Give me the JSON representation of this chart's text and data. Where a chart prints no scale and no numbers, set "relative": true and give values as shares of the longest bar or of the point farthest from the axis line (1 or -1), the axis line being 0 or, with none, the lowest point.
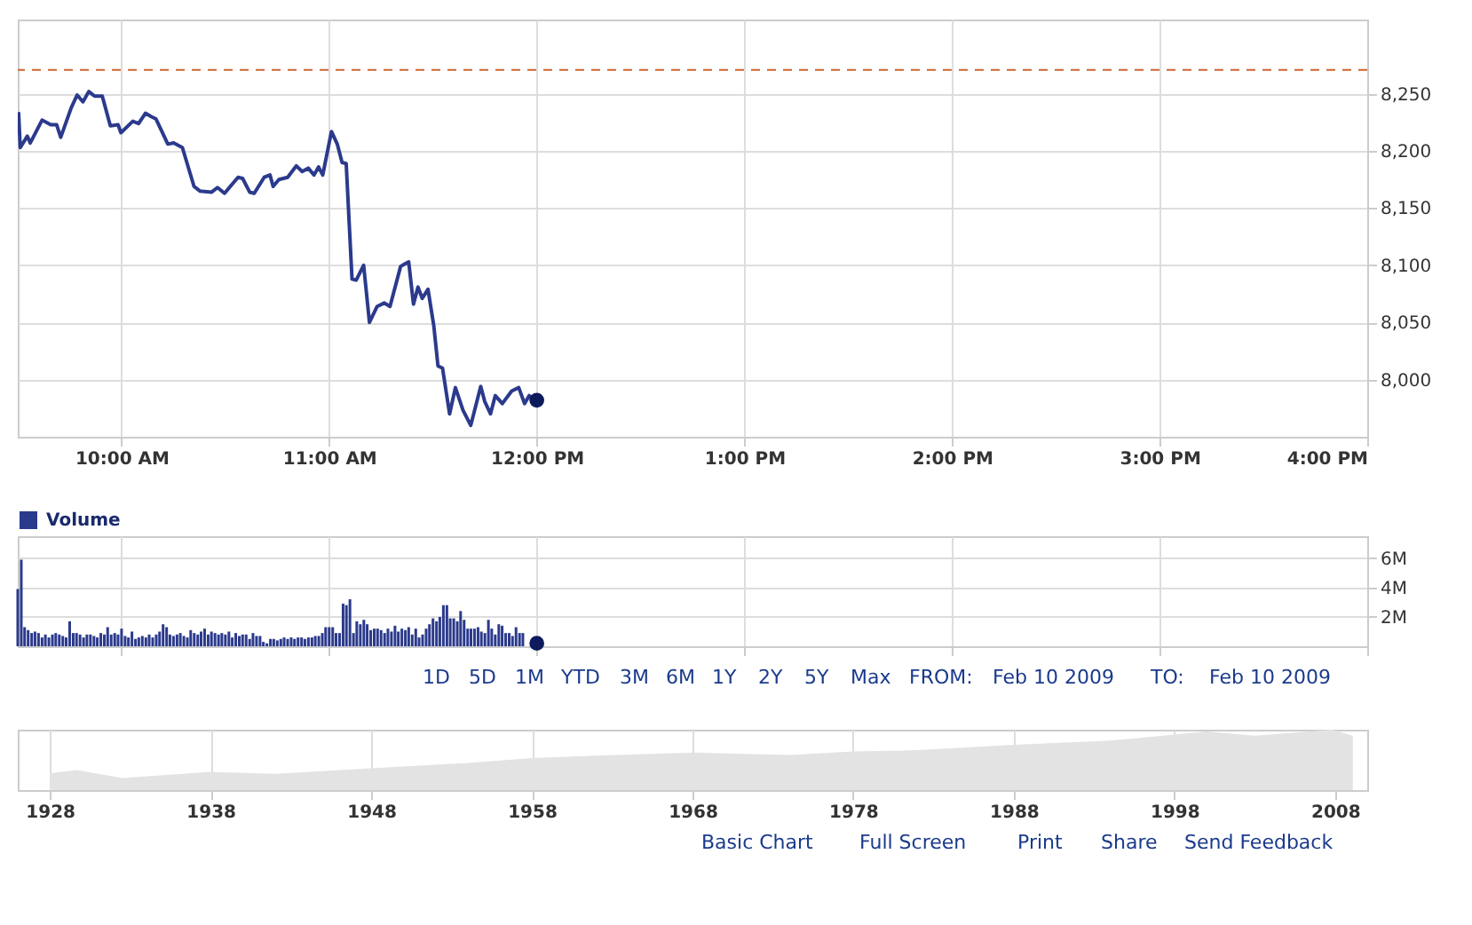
{
  "chart_data": [
    {
      "type": "line",
      "xlim": [
        9.5,
        16
      ],
      "xticks": [
        {
          "value": 10,
          "label": "10:00 AM"
        },
        {
          "value": 11,
          "label": "11:00 AM"
        },
        {
          "value": 12,
          "label": "12:00 PM"
        },
        {
          "value": 13,
          "label": "1:00 PM"
        },
        {
          "value": 14,
          "label": "2:00 PM"
        },
        {
          "value": 15,
          "label": "3:00 PM"
        },
        {
          "value": 16,
          "label": "4:00 PM"
        }
      ],
      "ylim": [
        7950,
        8315
      ],
      "yticks": [
        {
          "value": 8000,
          "label": "8,000"
        },
        {
          "value": 8050,
          "label": "8,050"
        },
        {
          "value": 8100,
          "label": "8,100"
        },
        {
          "value": 8150,
          "label": "8,150"
        },
        {
          "value": 8200,
          "label": "8,200"
        },
        {
          "value": 8250,
          "label": "8,250"
        }
      ],
      "grid": true,
      "line_style": "solid",
      "ref_lines": [
        {
          "axis": "y",
          "value": 8271,
          "color": "#cc6633",
          "line_style": "dashed"
        }
      ],
      "series": [
        {
          "color": "#2b3a8c",
          "x": [
            9.504,
            9.512,
            9.546,
            9.56,
            9.617,
            9.659,
            9.687,
            9.707,
            9.758,
            9.786,
            9.814,
            9.842,
            9.87,
            9.907,
            9.946,
            9.983,
            9.997,
            10.054,
            10.082,
            10.115,
            10.144,
            10.166,
            10.223,
            10.251,
            10.293,
            10.349,
            10.377,
            10.434,
            10.462,
            10.496,
            10.561,
            10.583,
            10.617,
            10.639,
            10.687,
            10.715,
            10.73,
            10.758,
            10.8,
            10.842,
            10.87,
            10.899,
            10.927,
            10.949,
            10.969,
            11.011,
            11.039,
            11.062,
            11.082,
            11.11,
            11.13,
            11.166,
            11.194,
            11.231,
            11.265,
            11.293,
            11.344,
            11.363,
            11.383,
            11.406,
            11.428,
            11.448,
            11.476,
            11.504,
            11.524,
            11.546,
            11.58,
            11.608,
            11.645,
            11.682,
            11.73,
            11.749,
            11.777,
            11.8,
            11.834,
            11.879,
            11.913,
            11.941,
            11.963,
            12.0
          ],
          "values": [
            8234,
            8203,
            8213,
            8207,
            8227,
            8223,
            8223,
            8212,
            8238,
            8249,
            8243,
            8252,
            8248,
            8248,
            8222,
            8223,
            8216,
            8226,
            8224,
            8233,
            8230,
            8228,
            8206,
            8207,
            8203,
            8169,
            8165,
            8164,
            8168,
            8163,
            8177,
            8176,
            8164,
            8163,
            8177,
            8179,
            8169,
            8175,
            8177,
            8187,
            8182,
            8185,
            8179,
            8186,
            8179,
            8217,
            8206,
            8190,
            8189,
            8088,
            8087,
            8100,
            8050,
            8064,
            8067,
            8064,
            8099,
            8101,
            8103,
            8066,
            8081,
            8071,
            8079,
            8047,
            8012,
            8010,
            7970,
            7993,
            7973,
            7960,
            7994,
            7981,
            7970,
            7986,
            7979,
            7990,
            7993,
            7979,
            7986,
            7982
          ]
        },
        {
          "type": "scatter",
          "color": "#0d1a5c",
          "x": [
            12.0
          ],
          "values": [
            7982
          ]
        }
      ]
    },
    {
      "type": "bar",
      "tick_labels": "y",
      "legend": "top left",
      "grid": true,
      "xlim": [
        9.5,
        16
      ],
      "xticks": [
        {
          "value": 10,
          "label": null
        },
        {
          "value": 11,
          "label": null
        },
        {
          "value": 12,
          "label": null
        },
        {
          "value": 13,
          "label": null
        },
        {
          "value": 14,
          "label": null
        },
        {
          "value": 15,
          "label": null
        },
        {
          "value": 16,
          "label": null
        }
      ],
      "ylim": [
        0,
        7.5
      ],
      "yticks": [
        {
          "value": 2,
          "label": "2M"
        },
        {
          "value": 4,
          "label": "4M"
        },
        {
          "value": 6,
          "label": "6M"
        }
      ],
      "annotations": [
        "1D",
        "5D",
        "1M",
        "YTD",
        "3M",
        "6M",
        "1Y",
        "2Y",
        "5Y",
        "Max",
        "FROM:",
        "Feb 10 2009",
        "TO:",
        "Feb 10 2009"
      ],
      "series": [
        {
          "name": "Volume",
          "color": "#2b3a8c",
          "x": [
            9.5,
            9.517,
            9.533,
            9.55,
            9.567,
            9.583,
            9.6,
            9.617,
            9.633,
            9.65,
            9.667,
            9.683,
            9.7,
            9.717,
            9.733,
            9.75,
            9.767,
            9.783,
            9.8,
            9.817,
            9.833,
            9.85,
            9.867,
            9.883,
            9.9,
            9.917,
            9.933,
            9.95,
            9.967,
            9.983,
            10.0,
            10.017,
            10.033,
            10.05,
            10.067,
            10.083,
            10.1,
            10.117,
            10.133,
            10.15,
            10.167,
            10.183,
            10.2,
            10.217,
            10.233,
            10.25,
            10.267,
            10.283,
            10.3,
            10.317,
            10.333,
            10.35,
            10.367,
            10.383,
            10.4,
            10.417,
            10.433,
            10.45,
            10.467,
            10.483,
            10.5,
            10.517,
            10.533,
            10.55,
            10.567,
            10.583,
            10.6,
            10.617,
            10.633,
            10.65,
            10.667,
            10.683,
            10.7,
            10.717,
            10.733,
            10.75,
            10.767,
            10.783,
            10.8,
            10.817,
            10.833,
            10.85,
            10.867,
            10.883,
            10.9,
            10.917,
            10.933,
            10.95,
            10.967,
            10.983,
            11.0,
            11.017,
            11.033,
            11.05,
            11.067,
            11.083,
            11.1,
            11.117,
            11.133,
            11.15,
            11.167,
            11.183,
            11.2,
            11.217,
            11.233,
            11.25,
            11.267,
            11.283,
            11.3,
            11.317,
            11.333,
            11.35,
            11.367,
            11.383,
            11.4,
            11.417,
            11.433,
            11.45,
            11.467,
            11.483,
            11.5,
            11.517,
            11.533,
            11.55,
            11.567,
            11.583,
            11.6,
            11.617,
            11.633,
            11.65,
            11.667,
            11.683,
            11.7,
            11.717,
            11.733,
            11.75,
            11.767,
            11.783,
            11.8,
            11.817,
            11.833,
            11.85,
            11.867,
            11.883,
            11.9,
            11.917,
            11.933
          ],
          "values": [
            3.9,
            5.9,
            1.3,
            1.1,
            0.9,
            1.0,
            0.9,
            0.6,
            0.8,
            0.6,
            0.8,
            0.9,
            0.8,
            0.7,
            0.6,
            1.7,
            0.9,
            0.9,
            0.8,
            0.6,
            0.8,
            0.8,
            0.7,
            0.6,
            0.9,
            0.8,
            1.3,
            0.8,
            0.9,
            0.8,
            1.2,
            0.7,
            0.6,
            1.0,
            0.5,
            0.6,
            0.7,
            0.6,
            0.8,
            0.6,
            0.8,
            1.0,
            1.5,
            1.3,
            0.8,
            0.7,
            0.8,
            0.9,
            0.7,
            0.6,
            1.1,
            0.9,
            0.8,
            1.0,
            1.2,
            0.8,
            1.0,
            0.9,
            0.8,
            0.9,
            0.8,
            1.0,
            0.6,
            0.9,
            0.7,
            0.8,
            0.8,
            0.5,
            0.9,
            0.7,
            0.7,
            0.3,
            0.2,
            0.5,
            0.5,
            0.4,
            0.5,
            0.6,
            0.5,
            0.6,
            0.5,
            0.6,
            0.6,
            0.5,
            0.6,
            0.6,
            0.7,
            0.7,
            0.9,
            1.3,
            1.3,
            1.3,
            0.9,
            0.9,
            2.9,
            2.8,
            3.2,
            0.9,
            1.7,
            1.5,
            1.8,
            1.5,
            1.1,
            1.2,
            1.2,
            1.1,
            0.9,
            1.2,
            1.0,
            1.4,
            1.0,
            1.2,
            1.1,
            1.3,
            0.8,
            1.2,
            0.6,
            0.8,
            1.2,
            1.5,
            1.9,
            1.7,
            2.0,
            2.8,
            2.8,
            1.9,
            1.9,
            1.7,
            2.4,
            1.8,
            1.2,
            1.2,
            1.2,
            1.3,
            1.0,
            0.9,
            1.8,
            1.2,
            0.8,
            1.5,
            1.4,
            0.9,
            0.9,
            0.7,
            1.3,
            0.9,
            0.9
          ]
        },
        {
          "type": "scatter",
          "color": "#0d1a5c",
          "x": [
            12.0
          ],
          "values": [
            0.2
          ]
        }
      ]
    },
    {
      "type": "area",
      "relative": true,
      "grid": "x",
      "xlim": [
        1926,
        2010
      ],
      "xticks": [
        1928,
        1938,
        1948,
        1958,
        1968,
        1978,
        1988,
        1998,
        2008
      ],
      "annotations": [
        "Basic Chart",
        "Full Screen",
        "Print",
        "Share",
        "Send Feedback"
      ],
      "series": [
        {
          "color": "#e3e3e3",
          "x": [
            1928,
            1929.7,
            1932.5,
            1938,
            1942,
            1948,
            1954,
            1958,
            1962,
            1968,
            1974,
            1978,
            1982,
            1988,
            1994,
            1998,
            2000,
            2003,
            2007.8,
            2009.1
          ],
          "values": [
            0.28,
            0.33,
            0.2,
            0.3,
            0.27,
            0.36,
            0.45,
            0.53,
            0.57,
            0.62,
            0.58,
            0.64,
            0.66,
            0.75,
            0.82,
            0.92,
            0.97,
            0.9,
            1.0,
            0.9
          ]
        }
      ]
    }
  ]
}
